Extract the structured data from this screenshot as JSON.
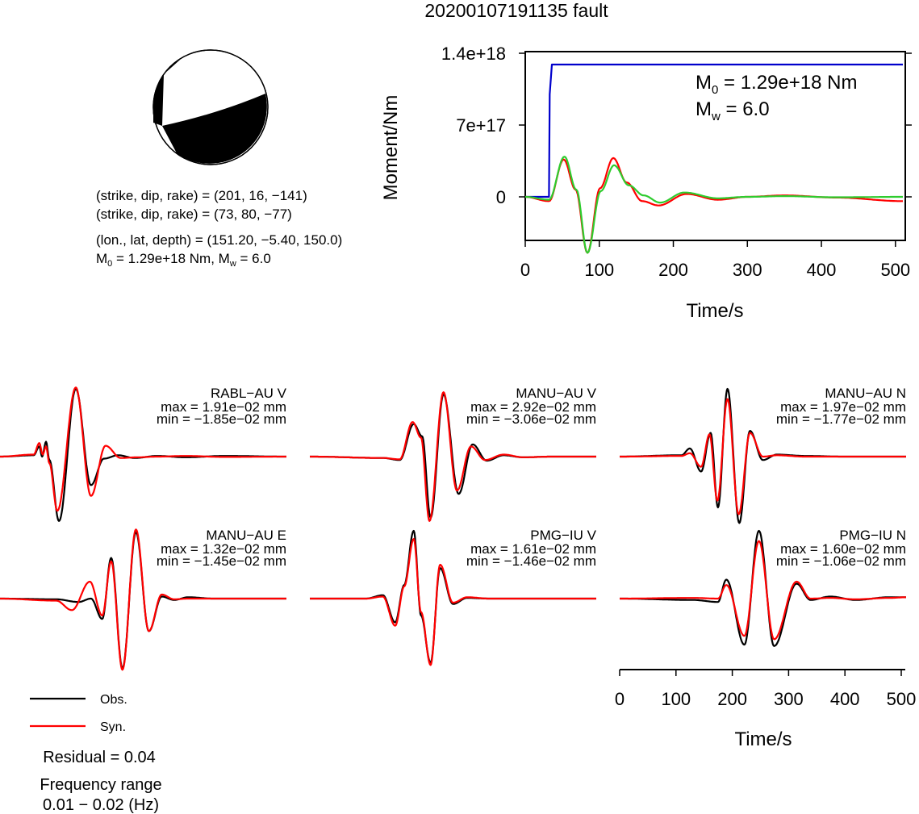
{
  "title": "20200107191135 fault",
  "mechanism": {
    "np1": "(strike, dip, rake) = (201, 16, −141)",
    "np2": "(strike, dip, rake) = (73, 80, −77)",
    "location": "(lon., lat, depth) = (151.20, −5.40, 150.0)",
    "moment_prefix": "M",
    "moment_sub": "0",
    "moment_rest": " = 1.29e+18 Nm, M",
    "mw_sub": "w",
    "mw_rest": " = 6.0"
  },
  "moment_plot": {
    "annot_m0_main": "M",
    "annot_m0_sub": "0",
    "annot_m0_value": " = 1.29e+18 Nm",
    "annot_mw_main": "M",
    "annot_mw_sub": "w",
    "annot_mw_value": " = 6.0"
  },
  "chart_data": [
    {
      "type": "line",
      "ylabel": "Moment/Nm",
      "xlabel": "Time/s",
      "xlim": [
        0,
        510
      ],
      "ylim": [
        -4.2e+17,
        1.4e+18
      ],
      "x_ticks": [
        0,
        100,
        200,
        300,
        400,
        500
      ],
      "y_ticks": [
        {
          "value": 0,
          "label": "0"
        },
        {
          "value": 7e+17,
          "label": "7e+17"
        },
        {
          "value": 1.4e+18,
          "label": "1.4e+18"
        }
      ],
      "series": [
        {
          "color": "#0000cc",
          "kind": "cumulative_moment",
          "x": [
            0,
            32,
            33,
            36,
            510
          ],
          "y": [
            0,
            0,
            1e+18,
            1.29e+18,
            1.29e+18
          ]
        },
        {
          "color": "#ff0000",
          "kind": "moment_rate",
          "peaks": [
            [
              0,
              0
            ],
            [
              32,
              -0.03
            ],
            [
              52,
              0.26
            ],
            [
              68,
              0.05
            ],
            [
              84,
              -0.39
            ],
            [
              101,
              0.06
            ],
            [
              119,
              0.27
            ],
            [
              137,
              0.1
            ],
            [
              158,
              -0.03
            ],
            [
              180,
              -0.06
            ],
            [
              218,
              0.02
            ],
            [
              260,
              -0.02
            ],
            [
              300,
              0.0
            ],
            [
              350,
              0.01
            ],
            [
              420,
              -0.005
            ],
            [
              510,
              -0.03
            ]
          ]
        },
        {
          "color": "#2ecc2e",
          "kind": "moment_rate",
          "peaks": [
            [
              0,
              0
            ],
            [
              32,
              -0.02
            ],
            [
              53,
              0.28
            ],
            [
              69,
              0.05
            ],
            [
              84,
              -0.39
            ],
            [
              102,
              0.04
            ],
            [
              120,
              0.22
            ],
            [
              140,
              0.08
            ],
            [
              160,
              0.01
            ],
            [
              182,
              -0.04
            ],
            [
              215,
              0.03
            ],
            [
              260,
              -0.01
            ],
            [
              300,
              0.0
            ],
            [
              350,
              0.005
            ],
            [
              420,
              -0.003
            ],
            [
              510,
              0.0
            ]
          ]
        }
      ]
    },
    {
      "type": "line",
      "name": "waveforms",
      "xlabel": "Time/s",
      "xlim": [
        0,
        510
      ],
      "x_ticks": [
        0,
        100,
        200,
        300,
        400,
        500
      ],
      "legend": [
        {
          "label": "Obs.",
          "color": "#000000"
        },
        {
          "label": "Syn.",
          "color": "#ff0000"
        }
      ],
      "stations": [
        {
          "label": "RABL−AU V",
          "max": "max = 1.91e−02 mm",
          "min": "min = −1.85e−02 mm",
          "obs": [
            [
              0,
              0
            ],
            [
              60,
              0.02
            ],
            [
              70,
              0.15
            ],
            [
              75,
              0.0
            ],
            [
              82,
              0.22
            ],
            [
              88,
              -0.05
            ],
            [
              105,
              -0.95
            ],
            [
              135,
              1.0
            ],
            [
              162,
              -0.42
            ],
            [
              185,
              -0.03
            ],
            [
              210,
              0.02
            ],
            [
              240,
              -0.02
            ],
            [
              280,
              0.01
            ],
            [
              330,
              -0.01
            ],
            [
              400,
              0.01
            ],
            [
              510,
              0
            ]
          ],
          "syn": [
            [
              0,
              0
            ],
            [
              60,
              0.03
            ],
            [
              70,
              0.2
            ],
            [
              76,
              0.03
            ],
            [
              82,
              0.15
            ],
            [
              88,
              -0.1
            ],
            [
              102,
              -0.8
            ],
            [
              135,
              1.02
            ],
            [
              162,
              -0.58
            ],
            [
              188,
              0.16
            ],
            [
              215,
              -0.02
            ],
            [
              245,
              -0.01
            ],
            [
              280,
              0.0
            ],
            [
              330,
              0.01
            ],
            [
              400,
              -0.005
            ],
            [
              510,
              0
            ]
          ]
        },
        {
          "label": "MANU−AU V",
          "max": "max = 2.92e−02 mm",
          "min": "min = −3.06e−02 mm",
          "obs": [
            [
              0,
              0
            ],
            [
              130,
              -0.02
            ],
            [
              160,
              -0.05
            ],
            [
              185,
              0.48
            ],
            [
              200,
              0.3
            ],
            [
              215,
              -0.9
            ],
            [
              238,
              0.92
            ],
            [
              265,
              -0.55
            ],
            [
              290,
              0.18
            ],
            [
              315,
              -0.06
            ],
            [
              345,
              0.02
            ],
            [
              380,
              -0.01
            ],
            [
              430,
              0.0
            ],
            [
              510,
              0
            ]
          ],
          "syn": [
            [
              0,
              0
            ],
            [
              130,
              -0.02
            ],
            [
              160,
              -0.04
            ],
            [
              183,
              0.51
            ],
            [
              198,
              0.28
            ],
            [
              213,
              -0.95
            ],
            [
              238,
              0.95
            ],
            [
              262,
              -0.5
            ],
            [
              287,
              0.15
            ],
            [
              312,
              -0.05
            ],
            [
              345,
              0.03
            ],
            [
              380,
              -0.01
            ],
            [
              430,
              0.0
            ],
            [
              510,
              0
            ]
          ]
        },
        {
          "label": "MANU−AU N",
          "max": "max = 1.97e−02 mm",
          "min": "min = −1.77e−02 mm",
          "obs": [
            [
              0,
              0
            ],
            [
              110,
              0.02
            ],
            [
              125,
              0.12
            ],
            [
              145,
              -0.22
            ],
            [
              162,
              0.35
            ],
            [
              175,
              -0.75
            ],
            [
              192,
              1.0
            ],
            [
              213,
              -0.98
            ],
            [
              232,
              0.38
            ],
            [
              255,
              -0.05
            ],
            [
              280,
              0.03
            ],
            [
              330,
              0.01
            ],
            [
              400,
              0.0
            ],
            [
              510,
              0
            ]
          ],
          "syn": [
            [
              0,
              0
            ],
            [
              110,
              0.01
            ],
            [
              125,
              0.05
            ],
            [
              145,
              -0.15
            ],
            [
              160,
              0.33
            ],
            [
              174,
              -0.65
            ],
            [
              192,
              0.85
            ],
            [
              212,
              -0.85
            ],
            [
              232,
              0.35
            ],
            [
              255,
              0.0
            ],
            [
              280,
              0.02
            ],
            [
              330,
              0.0
            ],
            [
              400,
              0.0
            ],
            [
              510,
              0
            ]
          ]
        },
        {
          "label": "MANU−AU E",
          "max": "max = 1.32e−02 mm",
          "min": "min = −1.45e−02 mm",
          "obs": [
            [
              0,
              0
            ],
            [
              100,
              -0.01
            ],
            [
              140,
              -0.05
            ],
            [
              162,
              0.0
            ],
            [
              182,
              -0.3
            ],
            [
              198,
              0.6
            ],
            [
              218,
              -1.03
            ],
            [
              242,
              0.98
            ],
            [
              265,
              -0.48
            ],
            [
              288,
              0.03
            ],
            [
              310,
              -0.02
            ],
            [
              335,
              0.02
            ],
            [
              380,
              0.0
            ],
            [
              510,
              0
            ]
          ],
          "syn": [
            [
              0,
              0
            ],
            [
              100,
              -0.03
            ],
            [
              128,
              -0.17
            ],
            [
              160,
              0.25
            ],
            [
              182,
              -0.25
            ],
            [
              198,
              0.55
            ],
            [
              218,
              -1.05
            ],
            [
              242,
              1.02
            ],
            [
              265,
              -0.48
            ],
            [
              288,
              0.06
            ],
            [
              310,
              -0.01
            ],
            [
              335,
              0.0
            ],
            [
              380,
              0.0
            ],
            [
              510,
              0
            ]
          ]
        },
        {
          "label": "PMG−IU V",
          "max": "max = 1.61e−02 mm",
          "min": "min = −1.46e−02 mm",
          "obs": [
            [
              0,
              0
            ],
            [
              100,
              0.0
            ],
            [
              130,
              0.05
            ],
            [
              152,
              -0.35
            ],
            [
              168,
              0.2
            ],
            [
              185,
              1.0
            ],
            [
              198,
              -0.25
            ],
            [
              215,
              -0.95
            ],
            [
              232,
              0.45
            ],
            [
              255,
              -0.08
            ],
            [
              280,
              0.01
            ],
            [
              320,
              0.0
            ],
            [
              400,
              0.0
            ],
            [
              510,
              0
            ]
          ],
          "syn": [
            [
              0,
              0
            ],
            [
              100,
              0.0
            ],
            [
              130,
              0.03
            ],
            [
              152,
              -0.4
            ],
            [
              168,
              0.18
            ],
            [
              185,
              0.88
            ],
            [
              198,
              -0.2
            ],
            [
              215,
              -0.98
            ],
            [
              232,
              0.5
            ],
            [
              255,
              -0.06
            ],
            [
              280,
              0.02
            ],
            [
              320,
              0.0
            ],
            [
              400,
              0.0
            ],
            [
              510,
              0
            ]
          ]
        },
        {
          "label": "PMG−IU N",
          "max": "max = 1.60e−02 mm",
          "min": "min = −1.06e−02 mm",
          "obs": [
            [
              0,
              0
            ],
            [
              130,
              -0.02
            ],
            [
              175,
              -0.05
            ],
            [
              190,
              0.28
            ],
            [
              222,
              -0.68
            ],
            [
              248,
              1.0
            ],
            [
              275,
              -0.7
            ],
            [
              315,
              0.22
            ],
            [
              340,
              -0.02
            ],
            [
              375,
              0.03
            ],
            [
              420,
              -0.02
            ],
            [
              480,
              0.02
            ],
            [
              510,
              0.02
            ]
          ],
          "syn": [
            [
              0,
              0
            ],
            [
              130,
              0.01
            ],
            [
              175,
              0.0
            ],
            [
              190,
              0.2
            ],
            [
              222,
              -0.55
            ],
            [
              248,
              0.85
            ],
            [
              275,
              -0.6
            ],
            [
              315,
              0.25
            ],
            [
              340,
              0.0
            ],
            [
              375,
              0.01
            ],
            [
              420,
              -0.01
            ],
            [
              480,
              0.01
            ],
            [
              510,
              0.02
            ]
          ]
        }
      ]
    }
  ],
  "footer": {
    "residual": "Residual = 0.04",
    "freq_label": "Frequency range",
    "freq_value": "0.01 − 0.02 (Hz)"
  }
}
